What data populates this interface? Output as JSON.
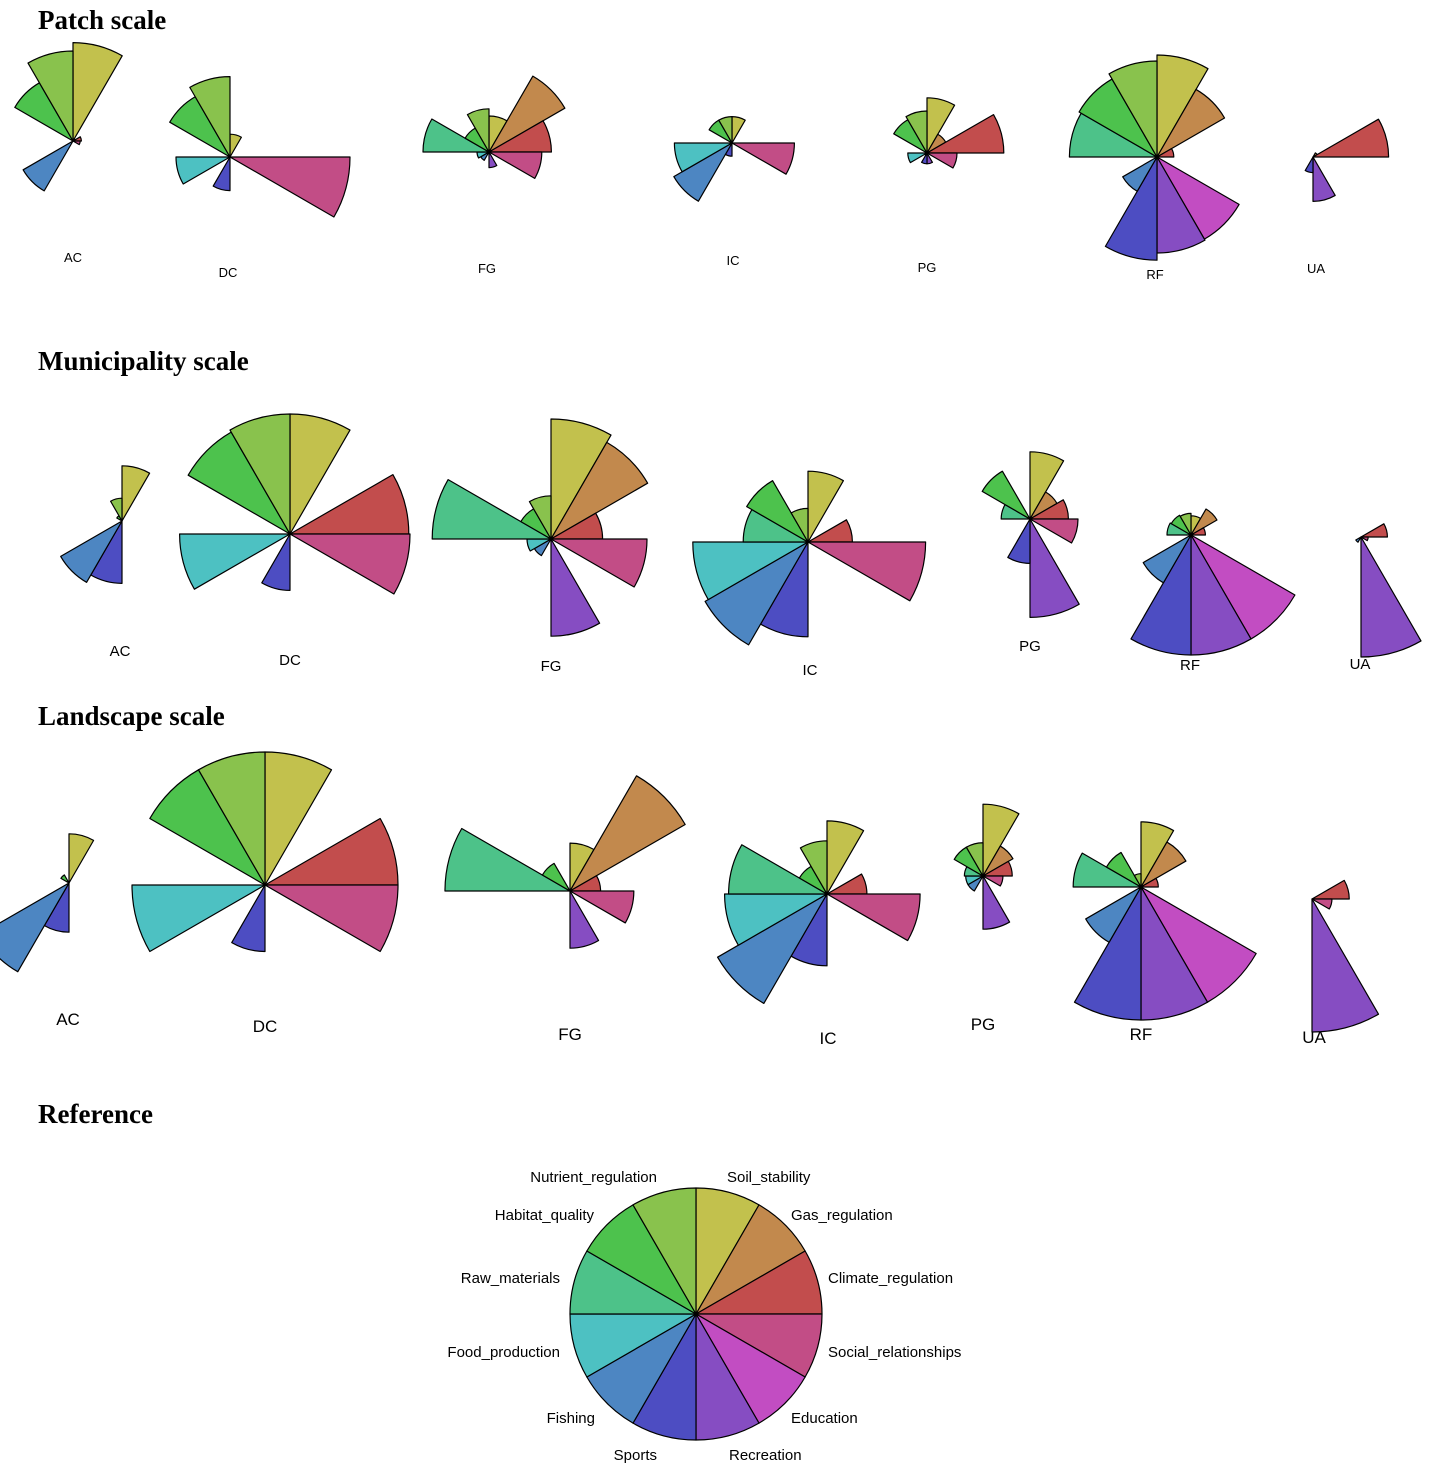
{
  "sections": [
    {
      "title": "Patch scale"
    },
    {
      "title": "Municipality scale"
    },
    {
      "title": "Landscape scale"
    },
    {
      "title": "Reference"
    }
  ],
  "services": [
    {
      "name": "Soil_stability",
      "color": "#c2c14d"
    },
    {
      "name": "Gas_regulation",
      "color": "#c2894d"
    },
    {
      "name": "Climate_regulation",
      "color": "#c24d4d"
    },
    {
      "name": "Social_relationships",
      "color": "#c24d86"
    },
    {
      "name": "Education",
      "color": "#c24dc2"
    },
    {
      "name": "Recreation",
      "color": "#864dc2"
    },
    {
      "name": "Sports",
      "color": "#4d4dc2"
    },
    {
      "name": "Fishing",
      "color": "#4d86c2"
    },
    {
      "name": "Food_production",
      "color": "#4dc1c2"
    },
    {
      "name": "Raw_materials",
      "color": "#4dc289"
    },
    {
      "name": "Habitat_quality",
      "color": "#4dc24d"
    },
    {
      "name": "Nutrient_regulation",
      "color": "#89c24d"
    }
  ],
  "chart_data": [
    {
      "type": "star",
      "scale": "Patch scale",
      "series_order": [
        "Soil_stability",
        "Gas_regulation",
        "Climate_regulation",
        "Social_relationships",
        "Education",
        "Recreation",
        "Sports",
        "Fishing",
        "Food_production",
        "Raw_materials",
        "Habitat_quality",
        "Nutrient_regulation"
      ],
      "stars": [
        {
          "label": "AC",
          "values": [
            0.82,
            0.02,
            0.07,
            0.06,
            0.0,
            0.0,
            0.0,
            0.48,
            0.0,
            0.0,
            0.56,
            0.75
          ]
        },
        {
          "label": "DC",
          "values": [
            0.19,
            0.0,
            0.0,
            1.0,
            0.0,
            0.0,
            0.28,
            0.0,
            0.45,
            0.0,
            0.58,
            0.67
          ]
        },
        {
          "label": "FG",
          "values": [
            0.3,
            0.73,
            0.52,
            0.44,
            0.0,
            0.13,
            0.0,
            0.08,
            0.1,
            0.55,
            0.23,
            0.36
          ]
        },
        {
          "label": "IC",
          "values": [
            0.22,
            0.0,
            0.0,
            0.52,
            0.0,
            0.0,
            0.11,
            0.56,
            0.48,
            0.0,
            0.22,
            0.22
          ]
        },
        {
          "label": "PG",
          "values": [
            0.46,
            0.18,
            0.64,
            0.25,
            0.0,
            0.09,
            0.09,
            0.02,
            0.16,
            0.0,
            0.32,
            0.35
          ]
        },
        {
          "label": "RF",
          "values": [
            0.85,
            0.65,
            0.14,
            0.0,
            0.79,
            0.8,
            0.86,
            0.33,
            0.0,
            0.73,
            0.75,
            0.8
          ]
        },
        {
          "label": "UA",
          "values": [
            0.0,
            0.04,
            0.63,
            0.0,
            0.0,
            0.37,
            0.13,
            0.0,
            0.0,
            0.0,
            0.0,
            0.0
          ]
        }
      ]
    },
    {
      "type": "star",
      "scale": "Municipality scale",
      "series_order": [
        "Soil_stability",
        "Gas_regulation",
        "Climate_regulation",
        "Social_relationships",
        "Education",
        "Recreation",
        "Sports",
        "Fishing",
        "Food_production",
        "Raw_materials",
        "Habitat_quality",
        "Nutrient_regulation"
      ],
      "stars": [
        {
          "label": "AC",
          "values": [
            0.46,
            0.0,
            0.0,
            0.0,
            0.0,
            0.0,
            0.52,
            0.59,
            0.0,
            0.0,
            0.05,
            0.19
          ]
        },
        {
          "label": "DC",
          "values": [
            1.0,
            0.0,
            0.99,
            1.0,
            0.0,
            0.0,
            0.47,
            0.0,
            0.92,
            0.0,
            0.98,
            1.0
          ]
        },
        {
          "label": "FG",
          "values": [
            1.0,
            0.93,
            0.43,
            0.8,
            0.0,
            0.81,
            0.0,
            0.16,
            0.2,
            0.99,
            0.29,
            0.36
          ]
        },
        {
          "label": "IC",
          "values": [
            0.59,
            0.0,
            0.37,
            0.98,
            0.0,
            0.0,
            0.79,
            0.99,
            0.96,
            0.54,
            0.59,
            0.28
          ]
        },
        {
          "label": "PG",
          "values": [
            0.56,
            0.26,
            0.32,
            0.4,
            0.0,
            0.82,
            0.37,
            0.0,
            0.0,
            0.24,
            0.46,
            0.0
          ]
        },
        {
          "label": "RF",
          "values": [
            0.16,
            0.25,
            0.12,
            0.0,
            1.0,
            1.0,
            1.0,
            0.46,
            0.0,
            0.2,
            0.19,
            0.18
          ]
        },
        {
          "label": "UA",
          "values": [
            0.0,
            0.0,
            0.22,
            0.06,
            0.0,
            1.0,
            0.0,
            0.05,
            0.0,
            0.0,
            0.0,
            0.0
          ]
        }
      ]
    },
    {
      "type": "star",
      "scale": "Landscape scale",
      "series_order": [
        "Soil_stability",
        "Gas_regulation",
        "Climate_regulation",
        "Social_relationships",
        "Education",
        "Recreation",
        "Sports",
        "Fishing",
        "Food_production",
        "Raw_materials",
        "Habitat_quality",
        "Nutrient_regulation"
      ],
      "stars": [
        {
          "label": "AC",
          "values": [
            0.37,
            0.0,
            0.0,
            0.0,
            0.0,
            0.0,
            0.37,
            0.77,
            0.0,
            0.0,
            0.07,
            0.0
          ]
        },
        {
          "label": "DC",
          "values": [
            1.0,
            0.0,
            1.0,
            1.0,
            0.0,
            0.0,
            0.5,
            0.0,
            1.0,
            0.0,
            1.0,
            1.0
          ]
        },
        {
          "label": "FG",
          "values": [
            0.36,
            1.0,
            0.23,
            0.48,
            0.0,
            0.43,
            0.0,
            0.0,
            0.0,
            0.94,
            0.24,
            0.0
          ]
        },
        {
          "label": "IC",
          "values": [
            0.55,
            0.0,
            0.3,
            0.7,
            0.0,
            0.0,
            0.54,
            0.95,
            0.77,
            0.74,
            0.24,
            0.4
          ]
        },
        {
          "label": "PG",
          "values": [
            0.54,
            0.26,
            0.22,
            0.15,
            0.0,
            0.4,
            0.0,
            0.13,
            0.13,
            0.14,
            0.25,
            0.25
          ]
        },
        {
          "label": "RF",
          "values": [
            0.49,
            0.39,
            0.13,
            0.0,
            1.0,
            1.0,
            1.0,
            0.48,
            0.0,
            0.51,
            0.3,
            0.1
          ]
        },
        {
          "label": "UA",
          "values": [
            0.0,
            0.0,
            0.28,
            0.15,
            0.0,
            1.0,
            0.0,
            0.0,
            0.0,
            0.0,
            0.0,
            0.0
          ]
        }
      ]
    },
    {
      "type": "star",
      "scale": "Reference",
      "series_order": [
        "Soil_stability",
        "Gas_regulation",
        "Climate_regulation",
        "Social_relationships",
        "Education",
        "Recreation",
        "Sports",
        "Fishing",
        "Food_production",
        "Raw_materials",
        "Habitat_quality",
        "Nutrient_regulation"
      ],
      "stars": [
        {
          "label": "",
          "values": [
            1,
            1,
            1,
            1,
            1,
            1,
            1,
            1,
            1,
            1,
            1,
            1
          ]
        }
      ]
    }
  ]
}
